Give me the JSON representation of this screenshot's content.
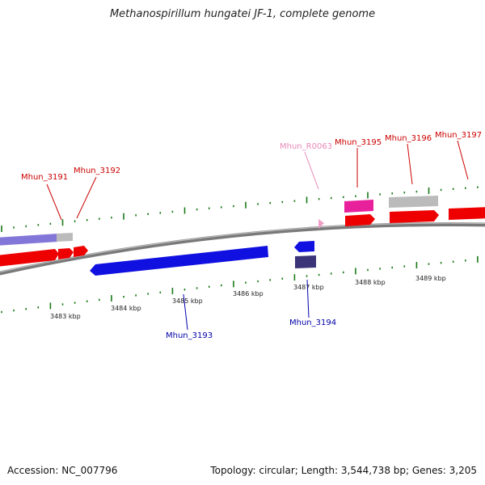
{
  "title": "Methanospirillum hungatei JF-1, complete genome",
  "footer": {
    "accession": "Accession: NC_007796",
    "summary": "Topology: circular; Length: 3,544,738 bp; Genes: 3,205"
  },
  "colors": {
    "forward_cds": "#ee0000",
    "reverse_cds": "#1010e0",
    "rna": "#f0a0c8",
    "pseudo_gray": "#bbbbbb",
    "forward_label": "#cc0000",
    "reverse_label": "#0000aa",
    "rna_label": "#e888b8",
    "tick": "#1a7a1a"
  },
  "scale": {
    "labels": [
      "3483 kbp",
      "3484 kbp",
      "3485 kbp",
      "3486 kbp",
      "3487 kbp",
      "3488 kbp",
      "3489 kbp"
    ]
  },
  "gene_labels": {
    "forward": [
      "Mhun_3191",
      "Mhun_3192",
      "Mhun_3195",
      "Mhun_3196",
      "Mhun_3197"
    ],
    "reverse": [
      "Mhun_3193",
      "Mhun_3194"
    ],
    "rna": [
      "Mhun_R0063"
    ]
  }
}
